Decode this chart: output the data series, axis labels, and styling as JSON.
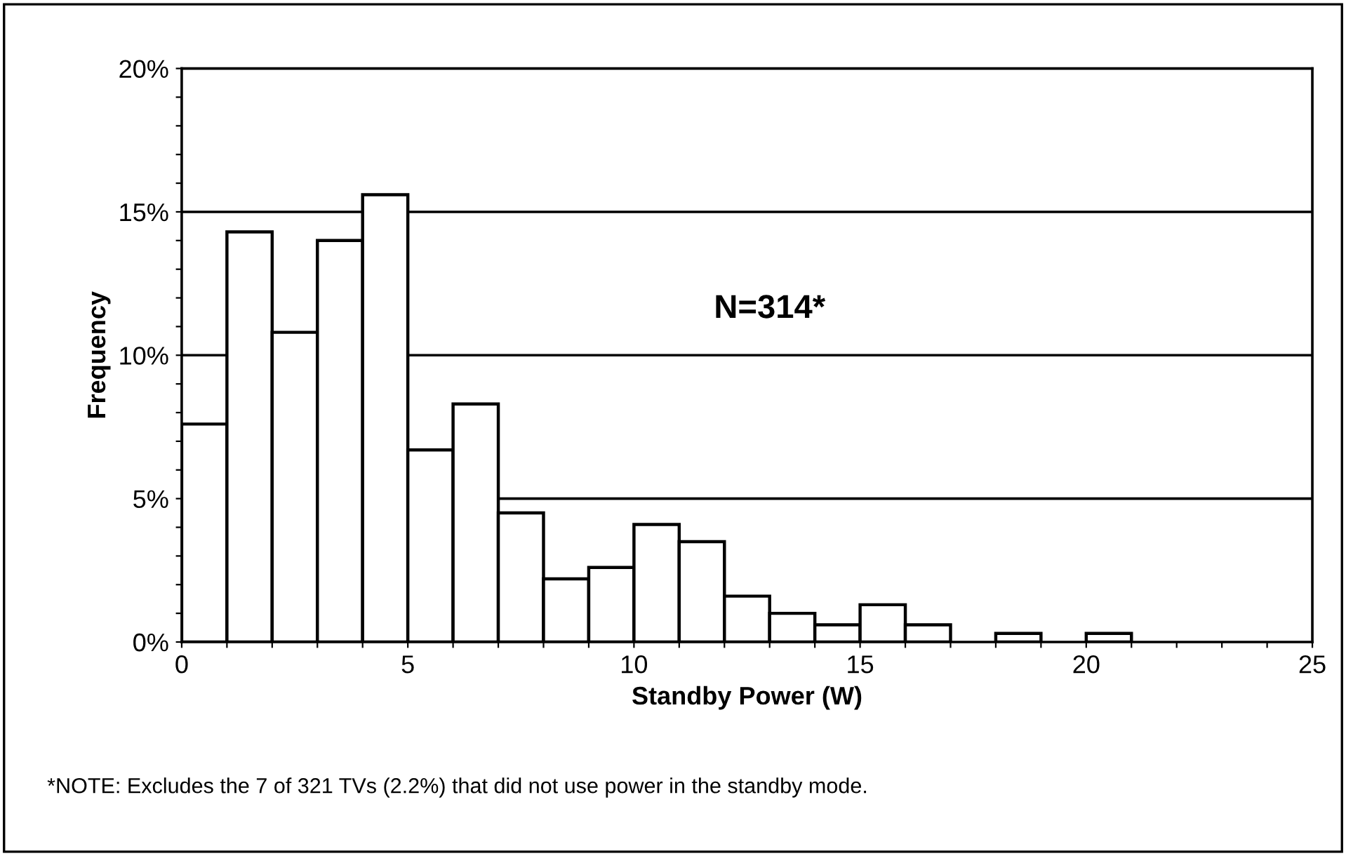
{
  "chart_data": {
    "type": "histogram",
    "xlabel": "Standby Power (W)",
    "ylabel": "Frequency",
    "bins": [
      0,
      1,
      2,
      3,
      4,
      5,
      6,
      7,
      8,
      9,
      10,
      11,
      12,
      13,
      14,
      15,
      16,
      17,
      18,
      19,
      20,
      21
    ],
    "values": [
      7.6,
      14.3,
      10.8,
      14.0,
      15.6,
      6.7,
      8.3,
      4.5,
      2.2,
      2.6,
      4.1,
      3.5,
      1.6,
      1.0,
      0.6,
      1.3,
      0.6,
      0,
      0.3,
      0,
      0.3
    ],
    "color": "#ffffff",
    "xlim": [
      0,
      25
    ],
    "xticks": [
      0,
      {
        "value": 1,
        "label": null
      },
      {
        "value": 2,
        "label": null
      },
      {
        "value": 3,
        "label": null
      },
      {
        "value": 4,
        "label": null
      },
      5,
      {
        "value": 6,
        "label": null
      },
      {
        "value": 7,
        "label": null
      },
      {
        "value": 8,
        "label": null
      },
      {
        "value": 9,
        "label": null
      },
      10,
      {
        "value": 11,
        "label": null
      },
      {
        "value": 12,
        "label": null
      },
      {
        "value": 13,
        "label": null
      },
      {
        "value": 14,
        "label": null
      },
      15,
      {
        "value": 16,
        "label": null
      },
      {
        "value": 17,
        "label": null
      },
      {
        "value": 18,
        "label": null
      },
      {
        "value": 19,
        "label": null
      },
      20,
      {
        "value": 21,
        "label": null
      },
      {
        "value": 22,
        "label": null
      },
      {
        "value": 23,
        "label": null
      },
      {
        "value": 24,
        "label": null
      },
      25
    ],
    "ylim": [
      0,
      20
    ],
    "yticks": [
      {
        "value": 0,
        "label": "0%"
      },
      {
        "value": 1,
        "label": null
      },
      {
        "value": 2,
        "label": null
      },
      {
        "value": 3,
        "label": null
      },
      {
        "value": 4,
        "label": null
      },
      {
        "value": 5,
        "label": "5%"
      },
      {
        "value": 6,
        "label": null
      },
      {
        "value": 7,
        "label": null
      },
      {
        "value": 8,
        "label": null
      },
      {
        "value": 9,
        "label": null
      },
      {
        "value": 10,
        "label": "10%"
      },
      {
        "value": 11,
        "label": null
      },
      {
        "value": 12,
        "label": null
      },
      {
        "value": 13,
        "label": null
      },
      {
        "value": 14,
        "label": null
      },
      {
        "value": 15,
        "label": "15%"
      },
      {
        "value": 16,
        "label": null
      },
      {
        "value": 17,
        "label": null
      },
      {
        "value": 18,
        "label": null
      },
      {
        "value": 19,
        "label": null
      },
      {
        "value": 20,
        "label": "20%"
      }
    ],
    "grid": "y",
    "annotations": [
      "N=314*",
      "*NOTE: Excludes the 7 of 321 TVs (2.2%) that did not use power in the standby mode."
    ]
  }
}
